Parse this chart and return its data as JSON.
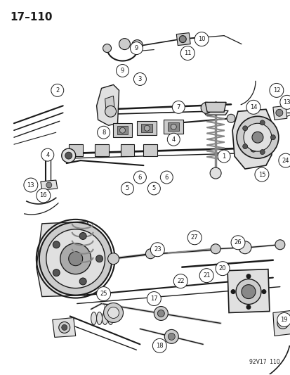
{
  "title": "17–110",
  "watermark": "92V17  110",
  "bg_color": "#ffffff",
  "fg_color": "#1a1a1a",
  "fig_width": 4.14,
  "fig_height": 5.33,
  "dpi": 100,
  "gray1": "#aaaaaa",
  "gray2": "#cccccc",
  "gray3": "#e0e0e0",
  "gray4": "#888888",
  "gray5": "#555555"
}
